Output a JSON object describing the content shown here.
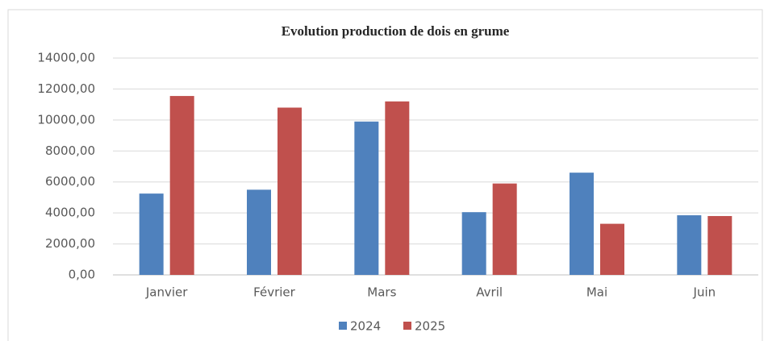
{
  "chart_data": {
    "type": "bar",
    "title": "Evolution production de dois en grume",
    "categories": [
      "Janvier",
      "Février",
      "Mars",
      "Avril",
      "Mai",
      "Juin"
    ],
    "series": [
      {
        "name": "2024",
        "color": "#4f81bd",
        "values": [
          5250,
          5500,
          9900,
          4050,
          6600,
          3850
        ]
      },
      {
        "name": "2025",
        "color": "#c0504d",
        "values": [
          11550,
          10800,
          11200,
          5900,
          3300,
          3800
        ]
      }
    ],
    "ylim": [
      0,
      14000
    ],
    "yticks": [
      {
        "value": 0,
        "label": "0,00"
      },
      {
        "value": 2000,
        "label": "2000,00"
      },
      {
        "value": 4000,
        "label": "4000,00"
      },
      {
        "value": 6000,
        "label": "6000,00"
      },
      {
        "value": 8000,
        "label": "8000,00"
      },
      {
        "value": 10000,
        "label": "10000,00"
      },
      {
        "value": 12000,
        "label": "12000,00"
      },
      {
        "value": 14000,
        "label": "14000,00"
      }
    ],
    "grid": true,
    "legend": "bottom"
  }
}
